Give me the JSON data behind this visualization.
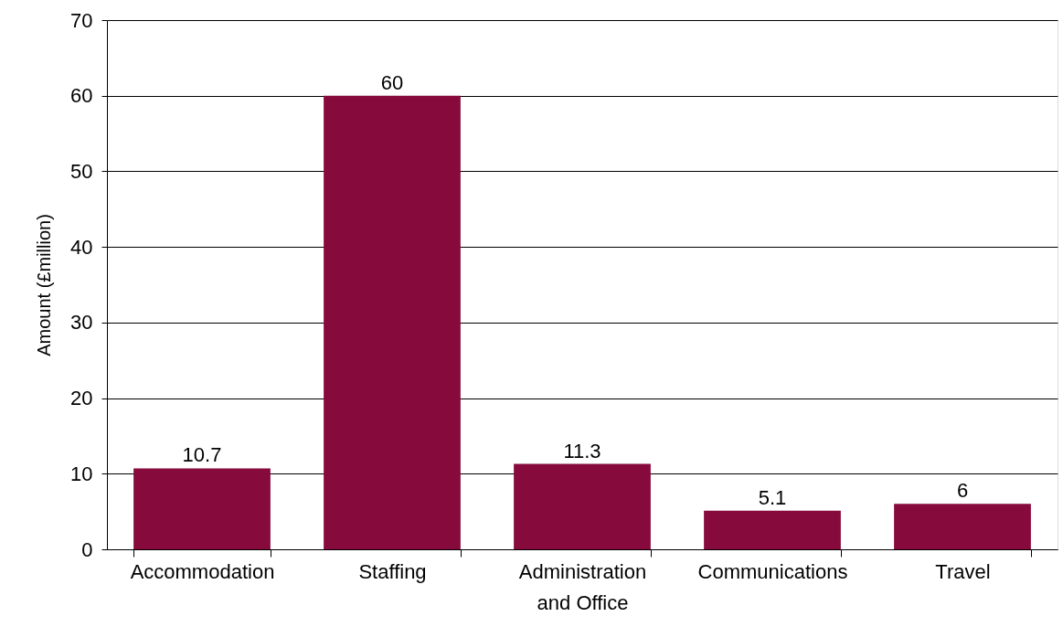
{
  "chart_data": {
    "type": "bar",
    "ylabel": "Amount (£million)",
    "categories": [
      "Accommodation",
      "Staffing",
      "Administration and Office",
      "Communications",
      "Travel"
    ],
    "values": [
      10.7,
      60,
      11.3,
      5.1,
      6
    ],
    "color": "#870a3c",
    "data_labels": true,
    "ylim": [
      0,
      70
    ],
    "yticks": [
      0,
      10,
      20,
      30,
      40,
      50,
      60,
      70
    ],
    "grid": "y"
  }
}
